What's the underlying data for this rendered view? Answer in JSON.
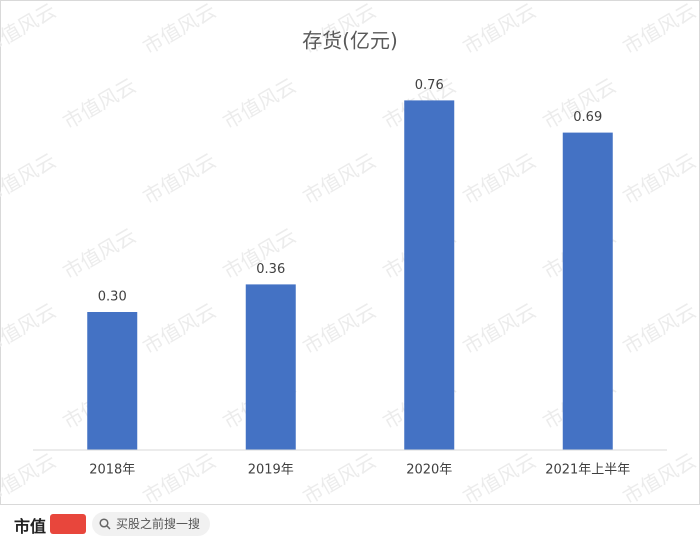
{
  "chart_data": {
    "type": "bar",
    "title": "存货(亿元)",
    "categories": [
      "2018年",
      "2019年",
      "2020年",
      "2021年上半年"
    ],
    "values": [
      0.3,
      0.36,
      0.76,
      0.69
    ],
    "value_labels": [
      "0.30",
      "0.36",
      "0.76",
      "0.69"
    ],
    "color": "#4472c4",
    "ylim": [
      0,
      0.8
    ],
    "grid": false
  },
  "watermark": "市值风云",
  "footer": {
    "brand": "市值",
    "search_text": "买股之前搜一搜"
  }
}
